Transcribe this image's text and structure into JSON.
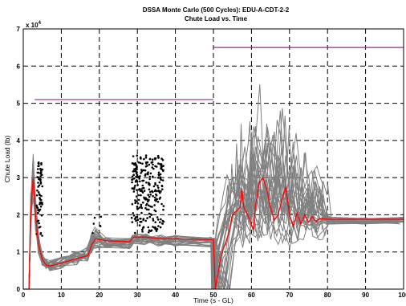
{
  "chart_data": {
    "type": "line",
    "title": "DSSA Monte Carlo (500 Cycles): EDU-A-CDT-2-2",
    "subtitle": "Chute Load vs. Time",
    "xlabel": "Time (s - GL)",
    "ylabel": "Chute Load (lb)",
    "y_multiplier": "x 10",
    "y_multiplier_exp": "4",
    "xlim": [
      0,
      100
    ],
    "ylim": [
      0,
      70000
    ],
    "x_ticks": [
      "0",
      "10",
      "20",
      "30",
      "40",
      "50",
      "60",
      "70",
      "80",
      "90",
      "100"
    ],
    "y_ticks": [
      "0",
      "1",
      "2",
      "3",
      "4",
      "5",
      "6",
      "7"
    ],
    "grid": true,
    "colors": {
      "limit": "#a020a0",
      "traces": "#808080",
      "nominal": "#ff0000",
      "peaks": "#000000"
    },
    "limit_lines": [
      {
        "x": [
          3,
          50
        ],
        "y": 51000
      },
      {
        "x": [
          50,
          100
        ],
        "y": 65000
      }
    ],
    "series": [
      {
        "values": [
          [
            0,
            0
          ],
          [
            1.5,
            0
          ],
          [
            2,
            21000
          ],
          [
            2.6,
            30000
          ],
          [
            3.2,
            20000
          ],
          [
            4,
            12000
          ],
          [
            5,
            8000
          ],
          [
            6,
            6500
          ],
          [
            7,
            6200
          ],
          [
            10,
            7000
          ],
          [
            14,
            8200
          ],
          [
            17,
            9000
          ],
          [
            18,
            12000
          ],
          [
            19,
            13500
          ],
          [
            22,
            13000
          ],
          [
            28,
            12800
          ],
          [
            29,
            14000
          ],
          [
            32,
            14000
          ],
          [
            36,
            13600
          ],
          [
            40,
            13600
          ],
          [
            50,
            13300
          ],
          [
            50.5,
            0
          ],
          [
            52,
            9000
          ],
          [
            54,
            15000
          ],
          [
            55,
            20000
          ],
          [
            57,
            22000
          ],
          [
            57.5,
            27000
          ],
          [
            58,
            22000
          ],
          [
            59,
            20000
          ],
          [
            60.5,
            16000
          ],
          [
            61,
            22000
          ],
          [
            62,
            28500
          ],
          [
            63,
            30000
          ],
          [
            64,
            27000
          ],
          [
            65,
            22000
          ],
          [
            66,
            18500
          ],
          [
            67,
            20000
          ],
          [
            68,
            24000
          ],
          [
            69,
            27500
          ],
          [
            70,
            20000
          ],
          [
            71,
            17000
          ],
          [
            72,
            20500
          ],
          [
            73,
            17500
          ],
          [
            74,
            20000
          ],
          [
            75,
            18000
          ],
          [
            76,
            19500
          ],
          [
            77,
            18200
          ],
          [
            78,
            19000
          ],
          [
            80,
            18800
          ],
          [
            90,
            18800
          ],
          [
            100,
            18800
          ]
        ]
      }
    ]
  }
}
